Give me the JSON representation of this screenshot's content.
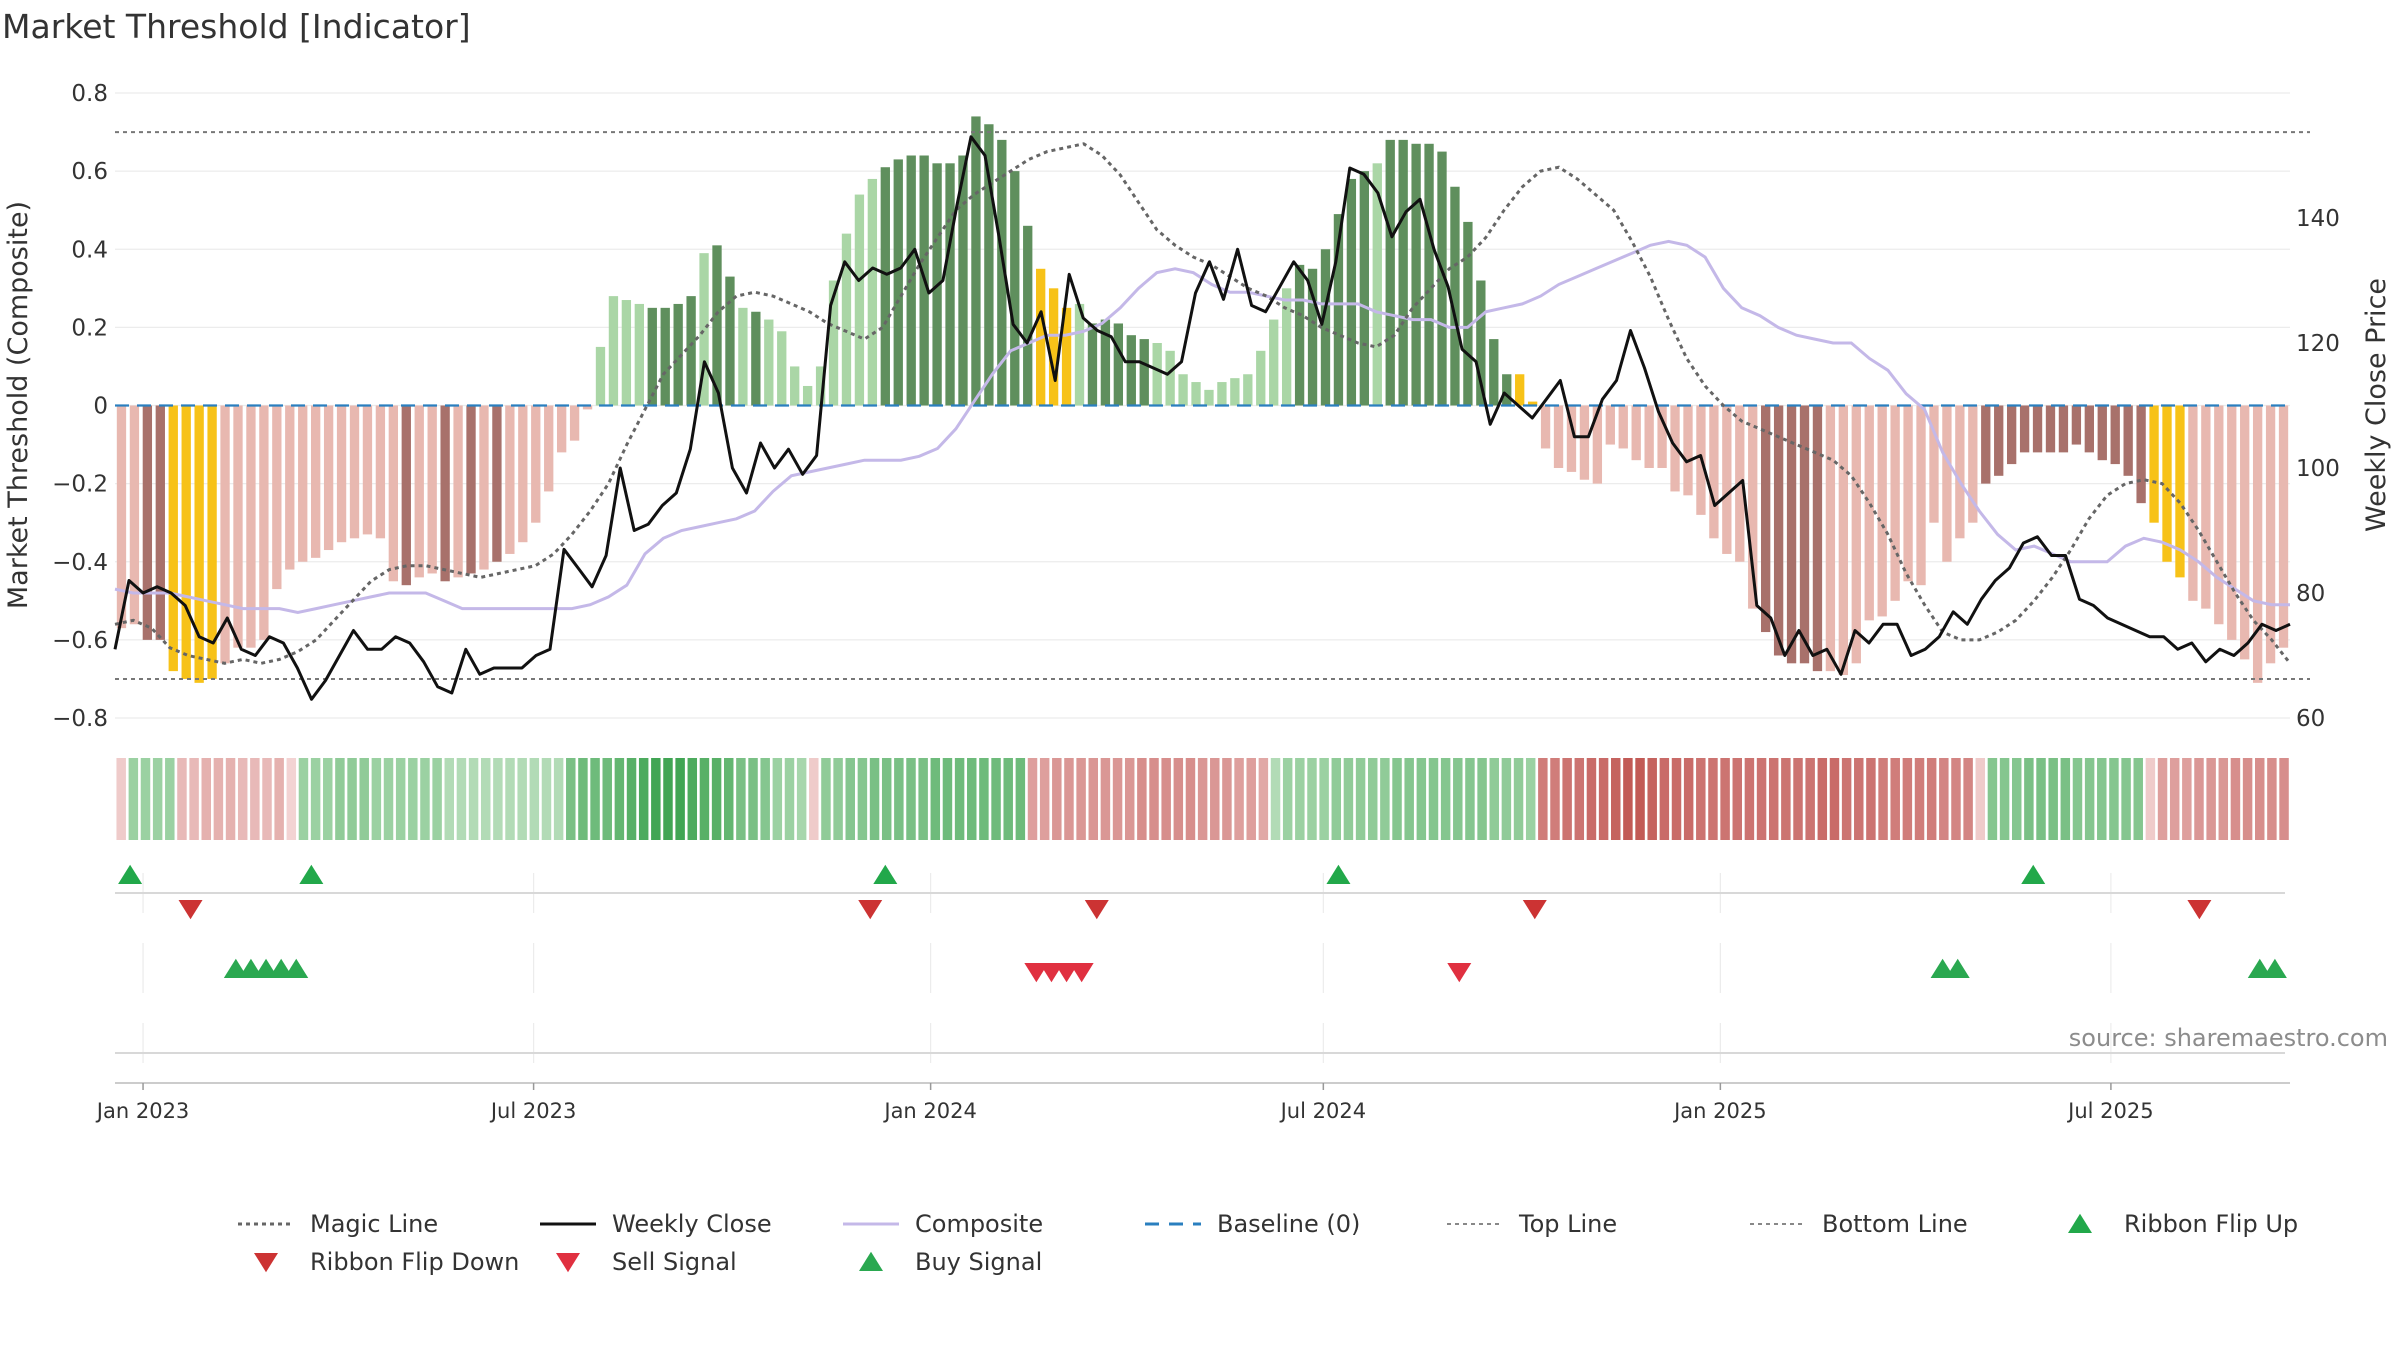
{
  "chart_data": {
    "type": "bar",
    "title": "Market Threshold [Indicator]",
    "ylabel": "Market Threshold (Composite)",
    "y2label": "Weekly Close Price",
    "ylim": [
      -0.8,
      0.8
    ],
    "y2lim": [
      60,
      160
    ],
    "yticks": [
      "0.8",
      "0.6",
      "0.4",
      "0.2",
      "0",
      "−0.2",
      "−0.4",
      "−0.6",
      "−0.8"
    ],
    "y2ticks": [
      "140",
      "120",
      "100",
      "80",
      "60"
    ],
    "x_range": [
      "2022-12-19",
      "2025-09-22"
    ],
    "x_ticks": [
      {
        "label": "Jan 2023",
        "date": "2023-01-01"
      },
      {
        "label": "Jul 2023",
        "date": "2023-07-01"
      },
      {
        "label": "Jan 2024",
        "date": "2024-01-01"
      },
      {
        "label": "Jul 2024",
        "date": "2024-07-01"
      },
      {
        "label": "Jan 2025",
        "date": "2025-01-01"
      },
      {
        "label": "Jul 2025",
        "date": "2025-07-01"
      }
    ],
    "top_line": 0.7,
    "bottom_line": -0.7,
    "baseline": 0,
    "composite_bars": [
      -0.57,
      -0.56,
      -0.6,
      -0.6,
      -0.68,
      -0.7,
      -0.71,
      -0.7,
      -0.66,
      -0.62,
      -0.62,
      -0.6,
      -0.47,
      -0.42,
      -0.4,
      -0.39,
      -0.37,
      -0.35,
      -0.34,
      -0.33,
      -0.34,
      -0.45,
      -0.46,
      -0.44,
      -0.43,
      -0.45,
      -0.44,
      -0.43,
      -0.42,
      -0.4,
      -0.38,
      -0.35,
      -0.3,
      -0.22,
      -0.12,
      -0.09,
      -0.01,
      0.15,
      0.28,
      0.27,
      0.26,
      0.25,
      0.25,
      0.26,
      0.28,
      0.39,
      0.41,
      0.33,
      0.25,
      0.24,
      0.22,
      0.19,
      0.1,
      0.05,
      0.1,
      0.32,
      0.44,
      0.54,
      0.58,
      0.61,
      0.63,
      0.64,
      0.64,
      0.62,
      0.62,
      0.64,
      0.74,
      0.72,
      0.68,
      0.6,
      0.46,
      0.35,
      0.3,
      0.25,
      0.26,
      0.21,
      0.22,
      0.21,
      0.18,
      0.17,
      0.16,
      0.14,
      0.08,
      0.06,
      0.04,
      0.06,
      0.07,
      0.08,
      0.14,
      0.22,
      0.3,
      0.36,
      0.35,
      0.4,
      0.49,
      0.58,
      0.6,
      0.62,
      0.68,
      0.68,
      0.67,
      0.67,
      0.65,
      0.56,
      0.47,
      0.32,
      0.17,
      0.08,
      0.08,
      0.01,
      -0.11,
      -0.16,
      -0.17,
      -0.19,
      -0.2,
      -0.1,
      -0.11,
      -0.14,
      -0.16,
      -0.16,
      -0.22,
      -0.23,
      -0.28,
      -0.34,
      -0.38,
      -0.4,
      -0.52,
      -0.58,
      -0.64,
      -0.66,
      -0.66,
      -0.68,
      -0.68,
      -0.69,
      -0.66,
      -0.55,
      -0.54,
      -0.5,
      -0.45,
      -0.46,
      -0.3,
      -0.4,
      -0.34,
      -0.3,
      -0.2,
      -0.18,
      -0.15,
      -0.12,
      -0.12,
      -0.12,
      -0.12,
      -0.1,
      -0.12,
      -0.14,
      -0.15,
      -0.18,
      -0.25,
      -0.3,
      -0.4,
      -0.44,
      -0.5,
      -0.52,
      -0.56,
      -0.6,
      -0.65,
      -0.71,
      -0.66,
      -0.62
    ],
    "bar_states": "ppddyyyyppppppppppppppdppdpdpdpppppppllllddddlddldlllllllllddddddddddddgggldddddlllllllllllddddddlddddddddddgglllllllllllllllppdddddppppppppppppdddddddddddddgggpppppppppppppddddddddddddgyp",
    "bar_colors": {
      "p": "#e8b8b0",
      "d": "#a8716b",
      "g": "#f7c218",
      "l": "#aad6a6",
      "dg": "#5f8f5d",
      "y": "#f9c41a"
    },
    "weekly_close": [
      71,
      82,
      80,
      81,
      80,
      78,
      73,
      72,
      76,
      71,
      70,
      73,
      72,
      68,
      63,
      66,
      70,
      74,
      71,
      71,
      73,
      72,
      69,
      65,
      64,
      71,
      67,
      68,
      68,
      68,
      70,
      71,
      87,
      84,
      81,
      86,
      100,
      90,
      91,
      94,
      96,
      103,
      117,
      112,
      100,
      96,
      104,
      100,
      103,
      99,
      102,
      126,
      133,
      130,
      132,
      131,
      132,
      135,
      128,
      130,
      142,
      153,
      150,
      137,
      123,
      120,
      125,
      114,
      131,
      124,
      122,
      121,
      117,
      117,
      116,
      115,
      117,
      128,
      133,
      127,
      135,
      126,
      125,
      129,
      133,
      130,
      123,
      133,
      148,
      147,
      144,
      137,
      141,
      143,
      135,
      129,
      119,
      117,
      107,
      112,
      110,
      108,
      111,
      114,
      105,
      105,
      111,
      114,
      122,
      116,
      109,
      104,
      101,
      102,
      94,
      96,
      98,
      78,
      76,
      70,
      74,
      70,
      71,
      67,
      74,
      72,
      75,
      75,
      70,
      71,
      73,
      77,
      75,
      79,
      82,
      84,
      88,
      89,
      86,
      86,
      79,
      78,
      76,
      75,
      74,
      73,
      73,
      71,
      72,
      69,
      71,
      70,
      72,
      75,
      74,
      75
    ],
    "composite_line": [
      -0.47,
      -0.48,
      -0.48,
      -0.48,
      -0.49,
      -0.5,
      -0.51,
      -0.52,
      -0.52,
      -0.52,
      -0.53,
      -0.52,
      -0.51,
      -0.5,
      -0.49,
      -0.48,
      -0.48,
      -0.48,
      -0.5,
      -0.52,
      -0.52,
      -0.52,
      -0.52,
      -0.52,
      -0.52,
      -0.52,
      -0.51,
      -0.49,
      -0.46,
      -0.38,
      -0.34,
      -0.32,
      -0.31,
      -0.3,
      -0.29,
      -0.27,
      -0.22,
      -0.18,
      -0.17,
      -0.16,
      -0.15,
      -0.14,
      -0.14,
      -0.14,
      -0.13,
      -0.11,
      -0.06,
      0.01,
      0.08,
      0.14,
      0.16,
      0.18,
      0.18,
      0.19,
      0.21,
      0.25,
      0.3,
      0.34,
      0.35,
      0.34,
      0.31,
      0.29,
      0.29,
      0.28,
      0.27,
      0.27,
      0.26,
      0.26,
      0.26,
      0.24,
      0.23,
      0.22,
      0.22,
      0.2,
      0.2,
      0.24,
      0.25,
      0.26,
      0.28,
      0.31,
      0.33,
      0.35,
      0.37,
      0.39,
      0.41,
      0.42,
      0.41,
      0.38,
      0.3,
      0.25,
      0.23,
      0.2,
      0.18,
      0.17,
      0.16,
      0.16,
      0.12,
      0.09,
      0.03,
      -0.01,
      -0.12,
      -0.2,
      -0.27,
      -0.33,
      -0.37,
      -0.36,
      -0.38,
      -0.4,
      -0.4,
      -0.4,
      -0.36,
      -0.34,
      -0.35,
      -0.37,
      -0.4,
      -0.44,
      -0.47,
      -0.5,
      -0.51,
      -0.51
    ],
    "magic_line": [
      -0.56,
      -0.55,
      -0.57,
      -0.62,
      -0.64,
      -0.65,
      -0.66,
      -0.65,
      -0.66,
      -0.65,
      -0.63,
      -0.6,
      -0.55,
      -0.5,
      -0.45,
      -0.42,
      -0.41,
      -0.41,
      -0.42,
      -0.43,
      -0.44,
      -0.43,
      -0.42,
      -0.41,
      -0.38,
      -0.33,
      -0.27,
      -0.2,
      -0.1,
      -0.01,
      0.08,
      0.13,
      0.18,
      0.24,
      0.28,
      0.29,
      0.28,
      0.26,
      0.24,
      0.21,
      0.19,
      0.17,
      0.2,
      0.28,
      0.36,
      0.43,
      0.5,
      0.54,
      0.57,
      0.6,
      0.63,
      0.65,
      0.66,
      0.67,
      0.64,
      0.59,
      0.52,
      0.45,
      0.41,
      0.38,
      0.36,
      0.33,
      0.3,
      0.28,
      0.25,
      0.23,
      0.2,
      0.18,
      0.16,
      0.15,
      0.18,
      0.25,
      0.3,
      0.35,
      0.38,
      0.43,
      0.5,
      0.56,
      0.6,
      0.61,
      0.58,
      0.54,
      0.5,
      0.42,
      0.33,
      0.22,
      0.12,
      0.05,
      0.0,
      -0.04,
      -0.06,
      -0.08,
      -0.1,
      -0.12,
      -0.14,
      -0.18,
      -0.25,
      -0.33,
      -0.43,
      -0.51,
      -0.58,
      -0.6,
      -0.6,
      -0.58,
      -0.55,
      -0.5,
      -0.44,
      -0.37,
      -0.29,
      -0.23,
      -0.2,
      -0.19,
      -0.2,
      -0.25,
      -0.32,
      -0.4,
      -0.48,
      -0.55,
      -0.6,
      -0.66
    ],
    "ribbon_levels": [
      -0.1,
      0.3,
      0.3,
      0.3,
      0.3,
      -0.2,
      -0.2,
      -0.25,
      -0.25,
      -0.25,
      -0.2,
      -0.2,
      -0.2,
      -0.25,
      -0.05,
      0.3,
      0.3,
      0.3,
      0.35,
      0.35,
      0.35,
      0.3,
      0.3,
      0.3,
      0.3,
      0.3,
      0.3,
      0.2,
      0.2,
      0.2,
      0.2,
      0.2,
      0.2,
      0.2,
      0.2,
      0.2,
      0.2,
      0.45,
      0.5,
      0.5,
      0.5,
      0.55,
      0.6,
      0.65,
      0.7,
      0.7,
      0.7,
      0.65,
      0.6,
      0.6,
      0.55,
      0.45,
      0.45,
      0.4,
      0.3,
      0.3,
      0.25,
      -0.1,
      0.35,
      0.35,
      0.4,
      0.4,
      0.45,
      0.45,
      0.45,
      0.45,
      0.45,
      0.5,
      0.5,
      0.5,
      0.5,
      0.5,
      0.5,
      0.5,
      0.5,
      -0.35,
      -0.35,
      -0.4,
      -0.4,
      -0.4,
      -0.4,
      -0.4,
      -0.4,
      -0.4,
      -0.45,
      -0.45,
      -0.45,
      -0.45,
      -0.45,
      -0.4,
      -0.4,
      -0.4,
      -0.35,
      -0.35,
      -0.3,
      0.2,
      0.3,
      0.3,
      0.3,
      0.3,
      0.35,
      0.35,
      0.35,
      0.35,
      0.35,
      0.4,
      0.4,
      0.4,
      0.4,
      0.4,
      0.4,
      0.4,
      0.4,
      0.35,
      0.35,
      0.35,
      0.3,
      -0.55,
      -0.55,
      -0.6,
      -0.6,
      -0.65,
      -0.65,
      -0.7,
      -0.75,
      -0.75,
      -0.7,
      -0.65,
      -0.65,
      -0.65,
      -0.6,
      -0.6,
      -0.6,
      -0.6,
      -0.6,
      -0.6,
      -0.6,
      -0.6,
      -0.6,
      -0.6,
      -0.65,
      -0.65,
      -0.6,
      -0.6,
      -0.6,
      -0.55,
      -0.55,
      -0.55,
      -0.55,
      -0.55,
      -0.5,
      -0.5,
      -0.5,
      -0.1,
      0.4,
      0.4,
      0.4,
      0.45,
      0.45,
      0.45,
      0.45,
      0.4,
      0.4,
      0.4,
      0.4,
      0.4,
      0.4,
      -0.1,
      -0.35,
      -0.35,
      -0.35,
      -0.4,
      -0.4,
      -0.4,
      -0.45,
      -0.45,
      -0.45,
      -0.45,
      -0.45
    ],
    "ribbon_flip_up": [
      "2022-12-26",
      "2023-03-20",
      "2023-12-11",
      "2024-07-08",
      "2025-05-26"
    ],
    "ribbon_flip_down": [
      "2023-01-23",
      "2023-12-04",
      "2024-03-18",
      "2024-10-07",
      "2025-08-11"
    ],
    "sell_signals": [
      "2024-02-19",
      "2024-02-26",
      "2024-03-04",
      "2024-03-11",
      "2024-09-02"
    ],
    "buy_signals": [
      "2023-02-13",
      "2023-02-20",
      "2023-02-27",
      "2023-03-06",
      "2023-03-13",
      "2025-04-14",
      "2025-04-21",
      "2025-09-08",
      "2025-09-15"
    ],
    "legend": [
      {
        "key": "magic",
        "label": "Magic Line"
      },
      {
        "key": "close",
        "label": "Weekly Close"
      },
      {
        "key": "composite",
        "label": "Composite"
      },
      {
        "key": "baseline",
        "label": "Baseline (0)"
      },
      {
        "key": "top",
        "label": "Top Line"
      },
      {
        "key": "bottom",
        "label": "Bottom Line"
      },
      {
        "key": "flip_up",
        "label": "Ribbon Flip Up"
      },
      {
        "key": "flip_down",
        "label": "Ribbon Flip Down"
      },
      {
        "key": "sell",
        "label": "Sell Signal"
      },
      {
        "key": "buy",
        "label": "Buy Signal"
      }
    ],
    "source": "source: sharemaestro.com",
    "colors": {
      "close": "#111111",
      "composite": "#c4b8e8",
      "magic": "#666666",
      "baseline": "#2a7fbf",
      "flip_up": "#22a84a",
      "flip_down": "#cc3333",
      "sell": "#e03040",
      "buy": "#2aa850"
    }
  }
}
